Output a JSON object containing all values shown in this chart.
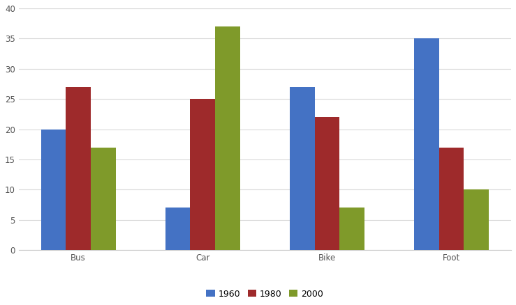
{
  "categories": [
    "Bus",
    "Car",
    "Bike",
    "Foot"
  ],
  "series": {
    "1960": [
      20,
      7,
      27,
      35
    ],
    "1980": [
      27,
      25,
      22,
      17
    ],
    "2000": [
      17,
      37,
      7,
      10
    ]
  },
  "colors": {
    "1960": "#4472C4",
    "1980": "#9E2A2B",
    "2000": "#7F9A2A"
  },
  "ylim": [
    0,
    40
  ],
  "yticks": [
    0,
    5,
    10,
    15,
    20,
    25,
    30,
    35,
    40
  ],
  "legend_labels": [
    "1960",
    "1980",
    "2000"
  ],
  "background_color": "#FFFFFF",
  "plot_area_color": "#FFFFFF",
  "bar_width": 0.2,
  "grid_color": "#D9D9D9",
  "tick_fontsize": 8.5,
  "legend_fontsize": 9
}
